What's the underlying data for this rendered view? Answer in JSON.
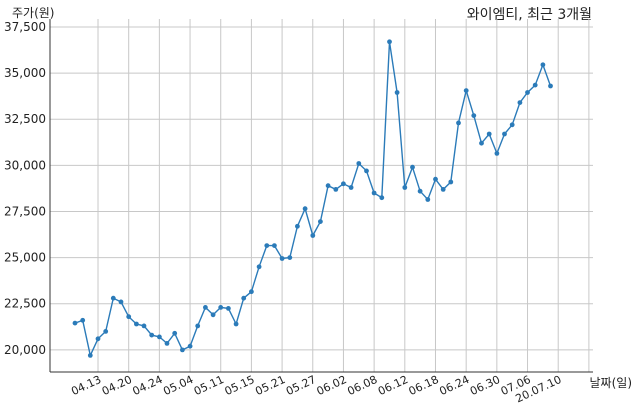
{
  "chart_data": {
    "type": "line",
    "title": "와이엠티, 최근 3개월",
    "ylabel": "주가(원)",
    "xlabel": "날짜(일)",
    "ylim": [
      18800,
      37500
    ],
    "grid": true,
    "line_color": "#2b7bb9",
    "yticks": [
      20000,
      22500,
      25000,
      27500,
      30000,
      32500,
      35000,
      37500
    ],
    "ytick_labels": [
      "20,000",
      "22,500",
      "25,000",
      "27,500",
      "30,000",
      "32,500",
      "35,000",
      "37,500"
    ],
    "xtick_index": [
      3,
      7,
      11,
      15,
      19,
      23,
      27,
      31,
      35,
      39,
      43,
      47,
      51,
      55,
      59,
      63,
      67
    ],
    "xtick_labels": [
      "04.13",
      "04.20",
      "04.24",
      "05.04",
      "05.11",
      "05.15",
      "05.21",
      "05.27",
      "06.02",
      "06.08",
      "06.12",
      "06.18",
      "06.24",
      "06.30",
      "07.06",
      "20.07.10",
      ""
    ],
    "values": [
      21450,
      21600,
      19700,
      20600,
      21000,
      22800,
      22600,
      21800,
      21400,
      21300,
      20800,
      20700,
      20350,
      20900,
      20000,
      20200,
      21300,
      22300,
      21900,
      22300,
      22250,
      21400,
      22800,
      23150,
      24500,
      25650,
      25650,
      24950,
      25000,
      26700,
      27650,
      26200,
      26950,
      28900,
      28700,
      29000,
      28800,
      30100,
      29700,
      28500,
      28250,
      36700,
      33950,
      28800,
      29900,
      28600,
      28150,
      29250,
      28700,
      29100,
      32300,
      34050,
      32700,
      31200,
      31700,
      30650,
      31700,
      32200,
      33400,
      33950,
      34350,
      35450,
      34300
    ]
  }
}
